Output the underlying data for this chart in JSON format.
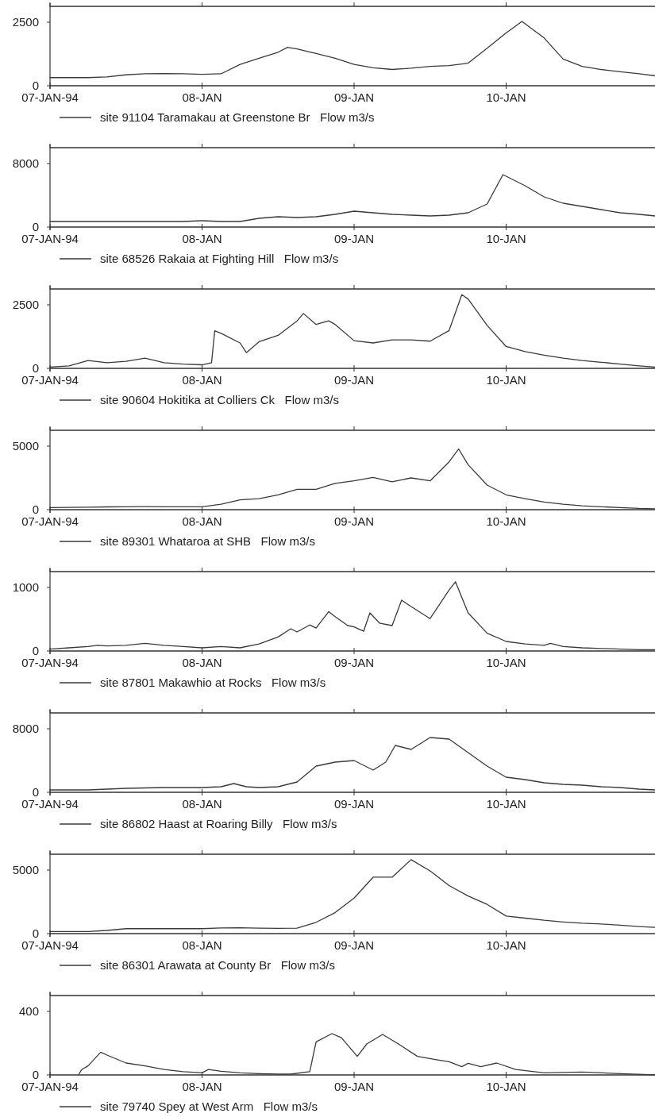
{
  "chart_data": [
    {
      "type": "line",
      "xlim": [
        "1994-01-07T00:00",
        "1994-01-10T23:30"
      ],
      "xticks": [
        {
          "value": "1994-01-07T00:00",
          "label": "07-JAN-94"
        },
        {
          "value": "1994-01-08T00:00",
          "label": "08-JAN"
        },
        {
          "value": "1994-01-09T00:00",
          "label": "09-JAN"
        },
        {
          "value": "1994-01-10T00:00",
          "label": "10-JAN"
        }
      ],
      "ylim": [
        0,
        3125
      ],
      "yticks": [
        0,
        2500
      ],
      "legend": "bottom",
      "series": [
        {
          "name": "site 91104 Taramakau at Greenstone Br   Flow m3/s",
          "color": "#3a3a3a",
          "x": [
            "1994-01-07T00:00",
            "1994-01-07T03:00",
            "1994-01-07T06:00",
            "1994-01-07T09:00",
            "1994-01-07T12:00",
            "1994-01-07T15:00",
            "1994-01-07T18:00",
            "1994-01-07T21:00",
            "1994-01-08T00:00",
            "1994-01-08T03:00",
            "1994-01-08T06:00",
            "1994-01-08T09:00",
            "1994-01-08T12:00",
            "1994-01-08T13:30",
            "1994-01-08T15:00",
            "1994-01-08T18:00",
            "1994-01-08T21:00",
            "1994-01-09T00:00",
            "1994-01-09T03:00",
            "1994-01-09T06:00",
            "1994-01-09T09:00",
            "1994-01-09T12:00",
            "1994-01-09T15:00",
            "1994-01-09T18:00",
            "1994-01-09T21:00",
            "1994-01-10T00:00",
            "1994-01-10T02:30",
            "1994-01-10T06:00",
            "1994-01-10T09:00",
            "1994-01-10T12:00",
            "1994-01-10T15:00",
            "1994-01-10T18:00",
            "1994-01-10T21:00",
            "1994-01-10T23:30"
          ],
          "values": [
            320,
            320,
            320,
            350,
            430,
            470,
            480,
            470,
            450,
            470,
            840,
            1080,
            1320,
            1510,
            1450,
            1270,
            1080,
            840,
            710,
            640,
            690,
            760,
            790,
            890,
            1480,
            2080,
            2530,
            1880,
            1050,
            760,
            640,
            550,
            470,
            390
          ]
        }
      ]
    },
    {
      "type": "line",
      "xlim": [
        "1994-01-07T00:00",
        "1994-01-10T23:30"
      ],
      "xticks": [
        {
          "value": "1994-01-07T00:00",
          "label": "07-JAN-94"
        },
        {
          "value": "1994-01-08T00:00",
          "label": "08-JAN"
        },
        {
          "value": "1994-01-09T00:00",
          "label": "09-JAN"
        },
        {
          "value": "1994-01-10T00:00",
          "label": "10-JAN"
        }
      ],
      "ylim": [
        0,
        10000
      ],
      "yticks": [
        0,
        8000
      ],
      "legend": "bottom",
      "series": [
        {
          "name": "site 68526 Rakaia at Fighting Hill   Flow m3/s",
          "color": "#3a3a3a",
          "x": [
            "1994-01-07T00:00",
            "1994-01-07T06:00",
            "1994-01-07T12:00",
            "1994-01-07T18:00",
            "1994-01-07T21:00",
            "1994-01-08T00:00",
            "1994-01-08T03:00",
            "1994-01-08T06:00",
            "1994-01-08T09:00",
            "1994-01-08T12:00",
            "1994-01-08T15:00",
            "1994-01-08T18:00",
            "1994-01-08T21:00",
            "1994-01-09T00:00",
            "1994-01-09T03:00",
            "1994-01-09T06:00",
            "1994-01-09T09:00",
            "1994-01-09T12:00",
            "1994-01-09T15:00",
            "1994-01-09T18:00",
            "1994-01-09T21:00",
            "1994-01-09T23:30",
            "1994-01-10T03:00",
            "1994-01-10T06:00",
            "1994-01-10T09:00",
            "1994-01-10T12:00",
            "1994-01-10T15:00",
            "1994-01-10T18:00",
            "1994-01-10T21:00",
            "1994-01-10T23:30"
          ],
          "values": [
            700,
            700,
            700,
            700,
            700,
            800,
            700,
            700,
            1100,
            1300,
            1200,
            1300,
            1600,
            2000,
            1800,
            1600,
            1500,
            1400,
            1500,
            1800,
            2900,
            6600,
            5200,
            3800,
            3000,
            2600,
            2200,
            1800,
            1600,
            1400
          ]
        }
      ]
    },
    {
      "type": "line",
      "xlim": [
        "1994-01-07T00:00",
        "1994-01-10T23:30"
      ],
      "xticks": [
        {
          "value": "1994-01-07T00:00",
          "label": "07-JAN-94"
        },
        {
          "value": "1994-01-08T00:00",
          "label": "08-JAN"
        },
        {
          "value": "1994-01-09T00:00",
          "label": "09-JAN"
        },
        {
          "value": "1994-01-10T00:00",
          "label": "10-JAN"
        }
      ],
      "ylim": [
        0,
        3125
      ],
      "yticks": [
        0,
        2500
      ],
      "legend": "bottom",
      "series": [
        {
          "name": "site 90604 Hokitika at Colliers Ck   Flow m3/s",
          "color": "#3a3a3a",
          "x": [
            "1994-01-07T00:00",
            "1994-01-07T03:00",
            "1994-01-07T06:00",
            "1994-01-07T09:00",
            "1994-01-07T12:00",
            "1994-01-07T15:00",
            "1994-01-07T18:00",
            "1994-01-07T21:00",
            "1994-01-08T00:00",
            "1994-01-08T01:30",
            "1994-01-08T02:00",
            "1994-01-08T03:00",
            "1994-01-08T06:00",
            "1994-01-08T07:00",
            "1994-01-08T09:00",
            "1994-01-08T12:00",
            "1994-01-08T15:00",
            "1994-01-08T16:00",
            "1994-01-08T18:00",
            "1994-01-08T20:00",
            "1994-01-08T21:00",
            "1994-01-09T00:00",
            "1994-01-09T03:00",
            "1994-01-09T06:00",
            "1994-01-09T09:00",
            "1994-01-09T12:00",
            "1994-01-09T15:00",
            "1994-01-09T17:00",
            "1994-01-09T18:00",
            "1994-01-09T21:00",
            "1994-01-10T00:00",
            "1994-01-10T03:00",
            "1994-01-10T06:00",
            "1994-01-10T09:00",
            "1994-01-10T12:00",
            "1994-01-10T15:00",
            "1994-01-10T18:00",
            "1994-01-10T21:00",
            "1994-01-10T23:30"
          ],
          "values": [
            50,
            100,
            310,
            220,
            280,
            400,
            220,
            170,
            140,
            220,
            1480,
            1380,
            1000,
            620,
            1050,
            1300,
            1870,
            2160,
            1730,
            1870,
            1730,
            1090,
            1000,
            1120,
            1120,
            1070,
            1490,
            2900,
            2730,
            1690,
            860,
            660,
            520,
            400,
            310,
            240,
            170,
            100,
            50
          ]
        }
      ]
    },
    {
      "type": "line",
      "xlim": [
        "1994-01-07T00:00",
        "1994-01-10T23:30"
      ],
      "xticks": [
        {
          "value": "1994-01-07T00:00",
          "label": "07-JAN-94"
        },
        {
          "value": "1994-01-08T00:00",
          "label": "08-JAN"
        },
        {
          "value": "1994-01-09T00:00",
          "label": "09-JAN"
        },
        {
          "value": "1994-01-10T00:00",
          "label": "10-JAN"
        }
      ],
      "ylim": [
        0,
        6250
      ],
      "yticks": [
        0,
        5000
      ],
      "legend": "bottom",
      "series": [
        {
          "name": "site 89301 Whataroa at SHB   Flow m3/s",
          "color": "#3a3a3a",
          "x": [
            "1994-01-07T00:00",
            "1994-01-07T03:00",
            "1994-01-07T06:00",
            "1994-01-07T09:00",
            "1994-01-07T12:00",
            "1994-01-07T15:00",
            "1994-01-07T18:00",
            "1994-01-07T21:00",
            "1994-01-08T00:00",
            "1994-01-08T03:00",
            "1994-01-08T06:00",
            "1994-01-08T09:00",
            "1994-01-08T12:00",
            "1994-01-08T15:00",
            "1994-01-08T18:00",
            "1994-01-08T21:00",
            "1994-01-09T00:00",
            "1994-01-09T03:00",
            "1994-01-09T06:00",
            "1994-01-09T09:00",
            "1994-01-09T12:00",
            "1994-01-09T15:00",
            "1994-01-09T16:30",
            "1994-01-09T18:00",
            "1994-01-09T21:00",
            "1994-01-10T00:00",
            "1994-01-10T03:00",
            "1994-01-10T06:00",
            "1994-01-10T09:00",
            "1994-01-10T12:00",
            "1994-01-10T15:00",
            "1994-01-10T18:00",
            "1994-01-10T21:00",
            "1994-01-10T23:30"
          ],
          "values": [
            170,
            180,
            200,
            220,
            230,
            240,
            230,
            230,
            230,
            430,
            770,
            870,
            1170,
            1600,
            1600,
            2070,
            2270,
            2540,
            2200,
            2500,
            2270,
            3770,
            4780,
            3540,
            1940,
            1170,
            870,
            600,
            430,
            300,
            230,
            170,
            100,
            70
          ]
        }
      ]
    },
    {
      "type": "line",
      "xlim": [
        "1994-01-07T00:00",
        "1994-01-10T23:30"
      ],
      "xticks": [
        {
          "value": "1994-01-07T00:00",
          "label": "07-JAN-94"
        },
        {
          "value": "1994-01-08T00:00",
          "label": "08-JAN"
        },
        {
          "value": "1994-01-09T00:00",
          "label": "09-JAN"
        },
        {
          "value": "1994-01-10T00:00",
          "label": "10-JAN"
        }
      ],
      "ylim": [
        0,
        1250
      ],
      "yticks": [
        0,
        1000
      ],
      "legend": "bottom",
      "series": [
        {
          "name": "site 87801 Makawhio at Rocks   Flow m3/s",
          "color": "#3a3a3a",
          "x": [
            "1994-01-07T00:00",
            "1994-01-07T03:00",
            "1994-01-07T06:00",
            "1994-01-07T07:30",
            "1994-01-07T09:00",
            "1994-01-07T12:00",
            "1994-01-07T15:00",
            "1994-01-07T18:00",
            "1994-01-07T21:00",
            "1994-01-08T00:00",
            "1994-01-08T03:00",
            "1994-01-08T06:00",
            "1994-01-08T09:00",
            "1994-01-08T12:00",
            "1994-01-08T14:00",
            "1994-01-08T15:00",
            "1994-01-08T17:00",
            "1994-01-08T18:00",
            "1994-01-08T20:00",
            "1994-01-08T21:00",
            "1994-01-08T23:00",
            "1994-01-09T00:00",
            "1994-01-09T01:30",
            "1994-01-09T02:30",
            "1994-01-09T04:00",
            "1994-01-09T06:00",
            "1994-01-09T07:30",
            "1994-01-09T09:00",
            "1994-01-09T12:00",
            "1994-01-09T15:00",
            "1994-01-09T16:00",
            "1994-01-09T18:00",
            "1994-01-09T21:00",
            "1994-01-10T00:00",
            "1994-01-10T03:00",
            "1994-01-10T06:00",
            "1994-01-10T07:00",
            "1994-01-10T09:00",
            "1994-01-10T12:00",
            "1994-01-10T15:00",
            "1994-01-10T18:00",
            "1994-01-10T21:00",
            "1994-01-10T23:30"
          ],
          "values": [
            30,
            50,
            70,
            90,
            80,
            90,
            120,
            90,
            70,
            50,
            70,
            50,
            110,
            220,
            350,
            300,
            410,
            360,
            620,
            540,
            400,
            380,
            310,
            600,
            440,
            400,
            800,
            700,
            510,
            960,
            1090,
            600,
            280,
            150,
            110,
            90,
            120,
            70,
            50,
            40,
            30,
            20,
            20
          ]
        }
      ]
    },
    {
      "type": "line",
      "xlim": [
        "1994-01-07T00:00",
        "1994-01-10T23:30"
      ],
      "xticks": [
        {
          "value": "1994-01-07T00:00",
          "label": "07-JAN-94"
        },
        {
          "value": "1994-01-08T00:00",
          "label": "08-JAN"
        },
        {
          "value": "1994-01-09T00:00",
          "label": "09-JAN"
        },
        {
          "value": "1994-01-10T00:00",
          "label": "10-JAN"
        }
      ],
      "ylim": [
        0,
        10000
      ],
      "yticks": [
        0,
        8000
      ],
      "legend": "bottom",
      "series": [
        {
          "name": "site 86802 Haast at Roaring Billy   Flow m3/s",
          "color": "#3a3a3a",
          "x": [
            "1994-01-07T00:00",
            "1994-01-07T06:00",
            "1994-01-07T12:00",
            "1994-01-07T18:00",
            "1994-01-07T21:00",
            "1994-01-08T00:00",
            "1994-01-08T03:00",
            "1994-01-08T05:00",
            "1994-01-08T07:00",
            "1994-01-08T09:00",
            "1994-01-08T12:00",
            "1994-01-08T15:00",
            "1994-01-08T18:00",
            "1994-01-08T21:00",
            "1994-01-09T00:00",
            "1994-01-09T03:00",
            "1994-01-09T05:00",
            "1994-01-09T06:30",
            "1994-01-09T09:00",
            "1994-01-09T12:00",
            "1994-01-09T15:00",
            "1994-01-09T18:00",
            "1994-01-09T21:00",
            "1994-01-10T00:00",
            "1994-01-10T03:00",
            "1994-01-10T06:00",
            "1994-01-10T09:00",
            "1994-01-10T12:00",
            "1994-01-10T15:00",
            "1994-01-10T18:00",
            "1994-01-10T21:00",
            "1994-01-10T23:30"
          ],
          "values": [
            300,
            300,
            500,
            600,
            600,
            600,
            700,
            1100,
            700,
            600,
            700,
            1300,
            3300,
            3800,
            4000,
            2800,
            3800,
            5900,
            5400,
            6900,
            6700,
            5000,
            3300,
            1900,
            1600,
            1200,
            1000,
            900,
            700,
            600,
            400,
            300
          ]
        }
      ]
    },
    {
      "type": "line",
      "xlim": [
        "1994-01-07T00:00",
        "1994-01-10T23:30"
      ],
      "xticks": [
        {
          "value": "1994-01-07T00:00",
          "label": "07-JAN-94"
        },
        {
          "value": "1994-01-08T00:00",
          "label": "08-JAN"
        },
        {
          "value": "1994-01-09T00:00",
          "label": "09-JAN"
        },
        {
          "value": "1994-01-10T00:00",
          "label": "10-JAN"
        }
      ],
      "ylim": [
        0,
        6250
      ],
      "yticks": [
        0,
        5000
      ],
      "legend": "bottom",
      "series": [
        {
          "name": "site 86301 Arawata at County Br   Flow m3/s",
          "color": "#3a3a3a",
          "x": [
            "1994-01-07T00:00",
            "1994-01-07T06:00",
            "1994-01-07T09:00",
            "1994-01-07T12:00",
            "1994-01-07T18:00",
            "1994-01-08T00:00",
            "1994-01-08T03:00",
            "1994-01-08T06:00",
            "1994-01-08T09:00",
            "1994-01-08T12:00",
            "1994-01-08T15:00",
            "1994-01-08T18:00",
            "1994-01-08T21:00",
            "1994-01-09T00:00",
            "1994-01-09T03:00",
            "1994-01-09T06:00",
            "1994-01-09T09:00",
            "1994-01-09T12:00",
            "1994-01-09T15:00",
            "1994-01-09T18:00",
            "1994-01-09T21:00",
            "1994-01-10T00:00",
            "1994-01-10T03:00",
            "1994-01-10T06:00",
            "1994-01-10T09:00",
            "1994-01-10T12:00",
            "1994-01-10T15:00",
            "1994-01-10T18:00",
            "1994-01-10T21:00",
            "1994-01-10T23:30"
          ],
          "values": [
            160,
            160,
            250,
            390,
            390,
            390,
            440,
            460,
            430,
            420,
            430,
            890,
            1650,
            2800,
            4440,
            4440,
            5820,
            4940,
            3780,
            2960,
            2300,
            1380,
            1220,
            1050,
            920,
            820,
            760,
            660,
            560,
            490
          ]
        }
      ]
    },
    {
      "type": "line",
      "xlim": [
        "1994-01-07T00:00",
        "1994-01-10T23:30"
      ],
      "xticks": [
        {
          "value": "1994-01-07T00:00",
          "label": "07-JAN-94"
        },
        {
          "value": "1994-01-08T00:00",
          "label": "08-JAN"
        },
        {
          "value": "1994-01-09T00:00",
          "label": "09-JAN"
        },
        {
          "value": "1994-01-10T00:00",
          "label": "10-JAN"
        }
      ],
      "ylim": [
        0,
        500
      ],
      "yticks": [
        0,
        400
      ],
      "legend": "bottom",
      "series": [
        {
          "name": "site 79740 Spey at West Arm   Flow m3/s",
          "color": "#3a3a3a",
          "x": [
            "1994-01-07T04:30",
            "1994-01-07T05:00",
            "1994-01-07T06:00",
            "1994-01-07T08:00",
            "1994-01-07T09:00",
            "1994-01-07T12:00",
            "1994-01-07T15:00",
            "1994-01-07T18:00",
            "1994-01-07T21:00",
            "1994-01-08T00:00",
            "1994-01-08T01:00",
            "1994-01-08T03:00",
            "1994-01-08T06:00",
            "1994-01-08T09:00",
            "1994-01-08T12:00",
            "1994-01-08T14:00",
            "1994-01-08T17:00",
            "1994-01-08T18:00",
            "1994-01-08T20:30",
            "1994-01-08T22:00",
            "1994-01-09T00:30",
            "1994-01-09T02:00",
            "1994-01-09T04:30",
            "1994-01-09T07:00",
            "1994-01-09T10:00",
            "1994-01-09T13:00",
            "1994-01-09T15:00",
            "1994-01-09T17:00",
            "1994-01-09T18:00",
            "1994-01-09T20:00",
            "1994-01-09T22:30",
            "1994-01-10T01:30",
            "1994-01-10T06:00",
            "1994-01-10T12:00",
            "1994-01-10T18:00",
            "1994-01-10T23:30"
          ],
          "values": [
            0,
            34,
            57,
            143,
            125,
            75,
            57,
            34,
            21,
            13,
            34,
            23,
            13,
            8,
            5,
            5,
            21,
            208,
            260,
            234,
            117,
            195,
            255,
            195,
            117,
            96,
            83,
            52,
            73,
            52,
            75,
            34,
            13,
            18,
            8,
            0
          ]
        }
      ]
    }
  ]
}
